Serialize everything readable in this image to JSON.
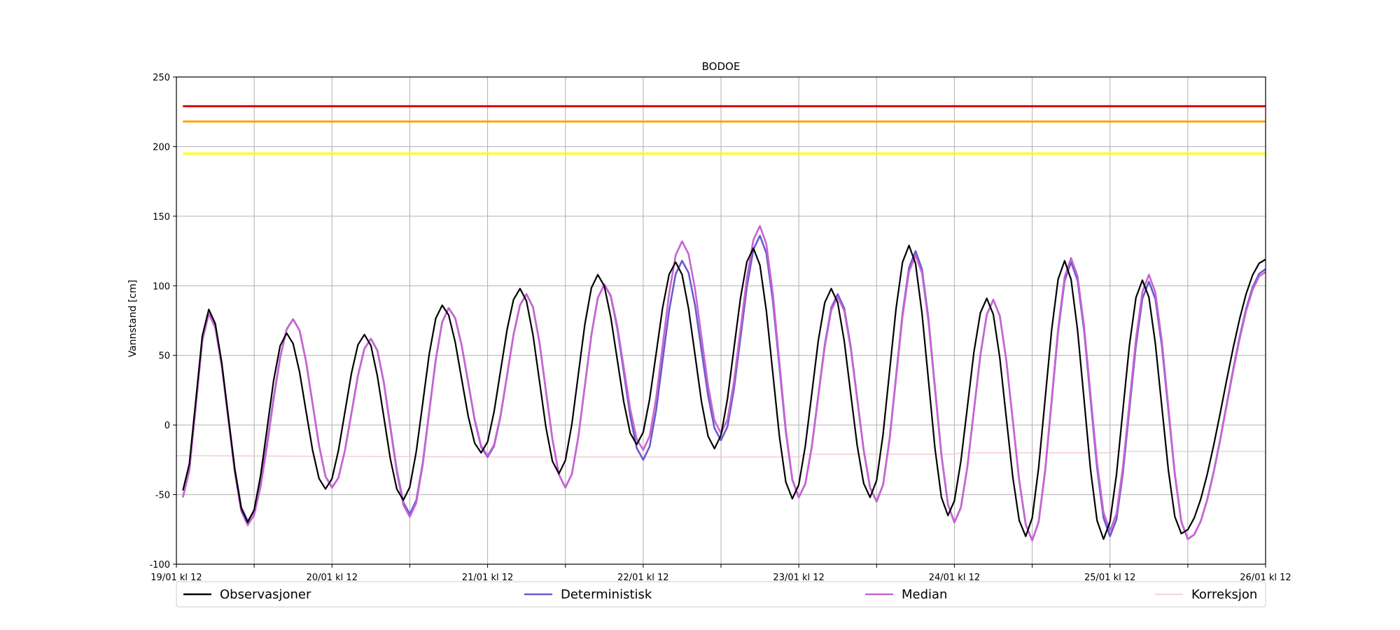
{
  "chart_data": {
    "type": "line",
    "title": "BODOE",
    "xlabel": "",
    "ylabel": "Vannstand [cm]",
    "ylim": [
      -100,
      250
    ],
    "yticks": [
      -100,
      -50,
      0,
      50,
      100,
      150,
      200,
      250
    ],
    "xlim_hours": [
      0,
      168
    ],
    "xticks": [
      {
        "label": "19/01 kl 12"
      },
      {
        "label": ""
      },
      {
        "label": "20/01 kl 12"
      },
      {
        "label": ""
      },
      {
        "label": "21/01 kl 12"
      },
      {
        "label": ""
      },
      {
        "label": "22/01 kl 12"
      },
      {
        "label": ""
      },
      {
        "label": "23/01 kl 12"
      },
      {
        "label": ""
      },
      {
        "label": "24/01 kl 12"
      },
      {
        "label": ""
      },
      {
        "label": "25/01 kl 12"
      },
      {
        "label": ""
      },
      {
        "label": "26/01 kl 12"
      }
    ],
    "grid": true,
    "legend_position": "below",
    "thresholds": [
      {
        "value": 229,
        "color": "#e00000"
      },
      {
        "value": 218,
        "color": "#ffa500"
      },
      {
        "value": 195,
        "color": "#ffff00"
      }
    ],
    "series": [
      {
        "name": "Observasjoner",
        "color": "#000000",
        "peaks": [
          [
            1,
            -47
          ],
          [
            5,
            83
          ],
          [
            11,
            -70
          ],
          [
            17,
            66
          ],
          [
            23,
            -46
          ],
          [
            29,
            65
          ],
          [
            35,
            -54
          ],
          [
            41,
            86
          ],
          [
            47,
            -20
          ],
          [
            53,
            98
          ],
          [
            59,
            -35
          ],
          [
            65,
            108
          ],
          [
            71,
            -14
          ],
          [
            77,
            117
          ],
          [
            83,
            -17
          ],
          [
            89,
            127
          ],
          [
            95,
            -53
          ],
          [
            101,
            98
          ],
          [
            107,
            -52
          ],
          [
            113,
            129
          ],
          [
            119,
            -65
          ],
          [
            125,
            91
          ],
          [
            131,
            -80
          ],
          [
            137,
            118
          ],
          [
            143,
            -82
          ],
          [
            149,
            104
          ],
          [
            155,
            -78
          ],
          [
            168,
            119
          ]
        ]
      },
      {
        "name": "Deterministisk",
        "color": "#6a5acd",
        "peaks": [
          [
            1,
            -52
          ],
          [
            5,
            80
          ],
          [
            11,
            -69
          ],
          [
            18,
            76
          ],
          [
            24,
            -45
          ],
          [
            30,
            62
          ],
          [
            36,
            -64
          ],
          [
            42,
            84
          ],
          [
            48,
            -23
          ],
          [
            54,
            94
          ],
          [
            60,
            -45
          ],
          [
            66,
            101
          ],
          [
            72,
            -25
          ],
          [
            78,
            118
          ],
          [
            84,
            -11
          ],
          [
            90,
            136
          ],
          [
            96,
            -52
          ],
          [
            102,
            94
          ],
          [
            108,
            -55
          ],
          [
            114,
            125
          ],
          [
            120,
            -70
          ],
          [
            126,
            90
          ],
          [
            132,
            -83
          ],
          [
            138,
            117
          ],
          [
            144,
            -80
          ],
          [
            150,
            103
          ],
          [
            156,
            -82
          ],
          [
            168,
            112
          ]
        ]
      },
      {
        "name": "Median",
        "color": "#c864d2",
        "peaks": [
          [
            1,
            -52
          ],
          [
            5,
            80
          ],
          [
            11,
            -72
          ],
          [
            18,
            76
          ],
          [
            24,
            -45
          ],
          [
            30,
            62
          ],
          [
            36,
            -66
          ],
          [
            42,
            84
          ],
          [
            48,
            -22
          ],
          [
            54,
            94
          ],
          [
            60,
            -45
          ],
          [
            66,
            101
          ],
          [
            72,
            -18
          ],
          [
            78,
            132
          ],
          [
            84,
            -6
          ],
          [
            90,
            143
          ],
          [
            96,
            -52
          ],
          [
            102,
            92
          ],
          [
            108,
            -55
          ],
          [
            114,
            122
          ],
          [
            120,
            -70
          ],
          [
            126,
            90
          ],
          [
            132,
            -83
          ],
          [
            138,
            120
          ],
          [
            144,
            -76
          ],
          [
            150,
            108
          ],
          [
            156,
            -82
          ],
          [
            168,
            110
          ]
        ]
      },
      {
        "name": "Korreksjon",
        "color": "#f2c6c6",
        "points": [
          [
            0,
            -22
          ],
          [
            48,
            -23
          ],
          [
            96,
            -23
          ],
          [
            97,
            -21
          ],
          [
            120,
            -21
          ],
          [
            121,
            -20
          ],
          [
            144,
            -20
          ],
          [
            145,
            -19
          ],
          [
            168,
            -19
          ]
        ]
      }
    ]
  }
}
